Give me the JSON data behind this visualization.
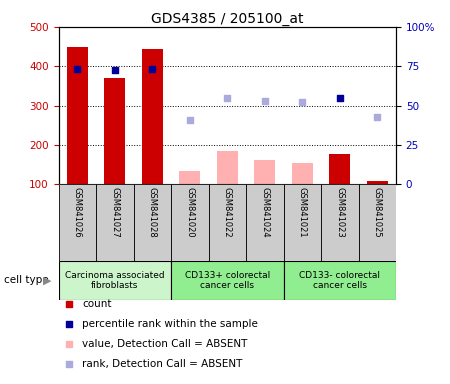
{
  "title": "GDS4385 / 205100_at",
  "samples": [
    "GSM841026",
    "GSM841027",
    "GSM841028",
    "GSM841020",
    "GSM841022",
    "GSM841024",
    "GSM841021",
    "GSM841023",
    "GSM841025"
  ],
  "count_values": [
    450,
    370,
    443,
    null,
    null,
    null,
    null,
    178,
    108
  ],
  "count_absent_values": [
    null,
    null,
    null,
    135,
    185,
    163,
    155,
    null,
    null
  ],
  "rank_present": [
    73.5,
    72.5,
    73.0,
    null,
    null,
    null,
    null,
    55.0,
    null
  ],
  "rank_absent": [
    null,
    null,
    null,
    41.0,
    55.0,
    53.0,
    52.0,
    null,
    42.5
  ],
  "ylim_left": [
    100,
    500
  ],
  "ylim_right": [
    0,
    100
  ],
  "yticks_left": [
    100,
    200,
    300,
    400,
    500
  ],
  "yticks_right": [
    0,
    25,
    50,
    75,
    100
  ],
  "ytick_labels_right": [
    "0",
    "25",
    "50",
    "75",
    "100%"
  ],
  "cell_groups": [
    {
      "label": "Carcinoma associated\nfibroblasts",
      "start": 0,
      "end": 3,
      "color": "#ccf5cc"
    },
    {
      "label": "CD133+ colorectal\ncancer cells",
      "start": 3,
      "end": 6,
      "color": "#90ee90"
    },
    {
      "label": "CD133- colorectal\ncancer cells",
      "start": 6,
      "end": 9,
      "color": "#90ee90"
    }
  ],
  "bar_width": 0.55,
  "count_color": "#cc0000",
  "count_absent_color": "#ffb0b0",
  "rank_present_color": "#000099",
  "rank_absent_color": "#aaaadd",
  "legend_items": [
    {
      "label": "count",
      "color": "#cc0000"
    },
    {
      "label": "percentile rank within the sample",
      "color": "#000099"
    },
    {
      "label": "value, Detection Call = ABSENT",
      "color": "#ffb0b0"
    },
    {
      "label": "rank, Detection Call = ABSENT",
      "color": "#aaaadd"
    }
  ],
  "grid_color": "black",
  "background_color": "#ffffff",
  "label_box_color": "#cccccc",
  "cell_type_label": "cell type"
}
